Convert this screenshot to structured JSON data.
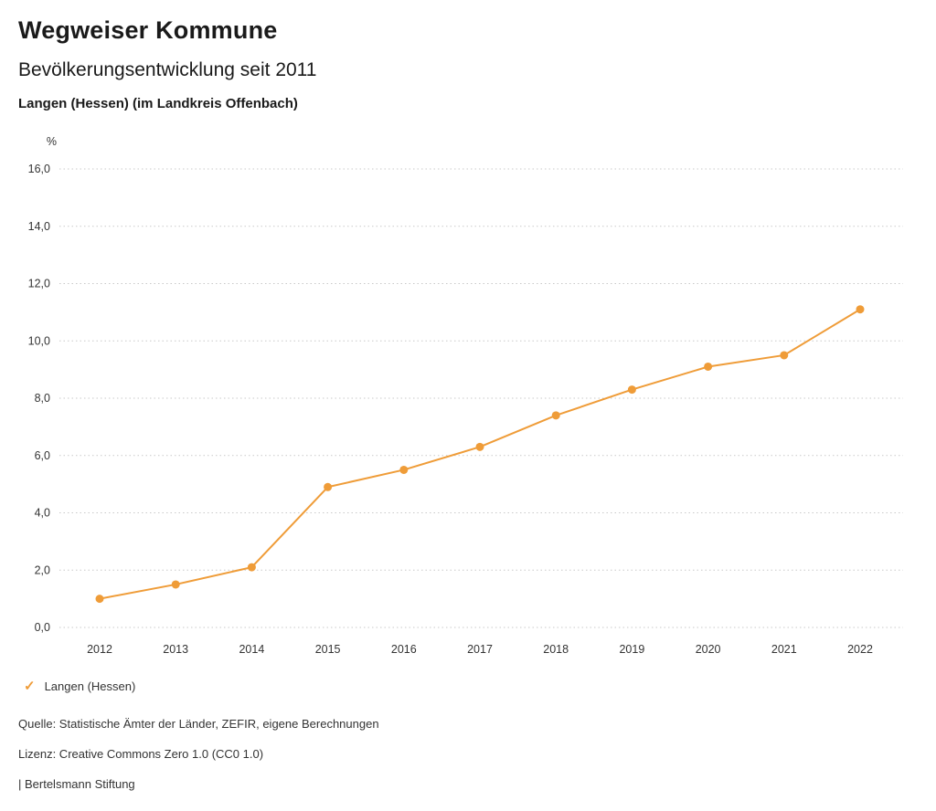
{
  "header": {
    "title": "Wegweiser Kommune",
    "subtitle": "Bevölkerungsentwicklung seit 2011",
    "location": "Langen (Hessen) (im Landkreis Offenbach)"
  },
  "chart_data": {
    "type": "line",
    "title": "Bevölkerungsentwicklung seit 2011",
    "unit_label": "%",
    "x": [
      2012,
      2013,
      2014,
      2015,
      2016,
      2017,
      2018,
      2019,
      2020,
      2021,
      2022
    ],
    "series": [
      {
        "name": "Langen (Hessen)",
        "values": [
          1.0,
          1.5,
          2.1,
          4.9,
          5.5,
          6.3,
          7.4,
          8.3,
          9.1,
          9.5,
          11.1
        ],
        "color": "#ef9c38"
      }
    ],
    "ylim": [
      0,
      16
    ],
    "ytick_step": 2,
    "ytick_labels": [
      "0,0",
      "2,0",
      "4,0",
      "6,0",
      "8,0",
      "10,0",
      "12,0",
      "14,0",
      "16,0"
    ],
    "grid": "horizontal-dotted",
    "legend_position": "bottom-left"
  },
  "legend": {
    "items": [
      {
        "label": "Langen (Hessen)",
        "color": "#ef9c38",
        "check_glyph": "✓"
      }
    ]
  },
  "footer": {
    "source": "Quelle: Statistische Ämter der Länder, ZEFIR, eigene Berechnungen",
    "license": "Lizenz: Creative Commons Zero 1.0 (CC0 1.0)",
    "attribution": "| Bertelsmann Stiftung"
  },
  "colors": {
    "accent": "#ef9c38",
    "grid": "#c9c9c9",
    "tick_text": "#333333"
  }
}
